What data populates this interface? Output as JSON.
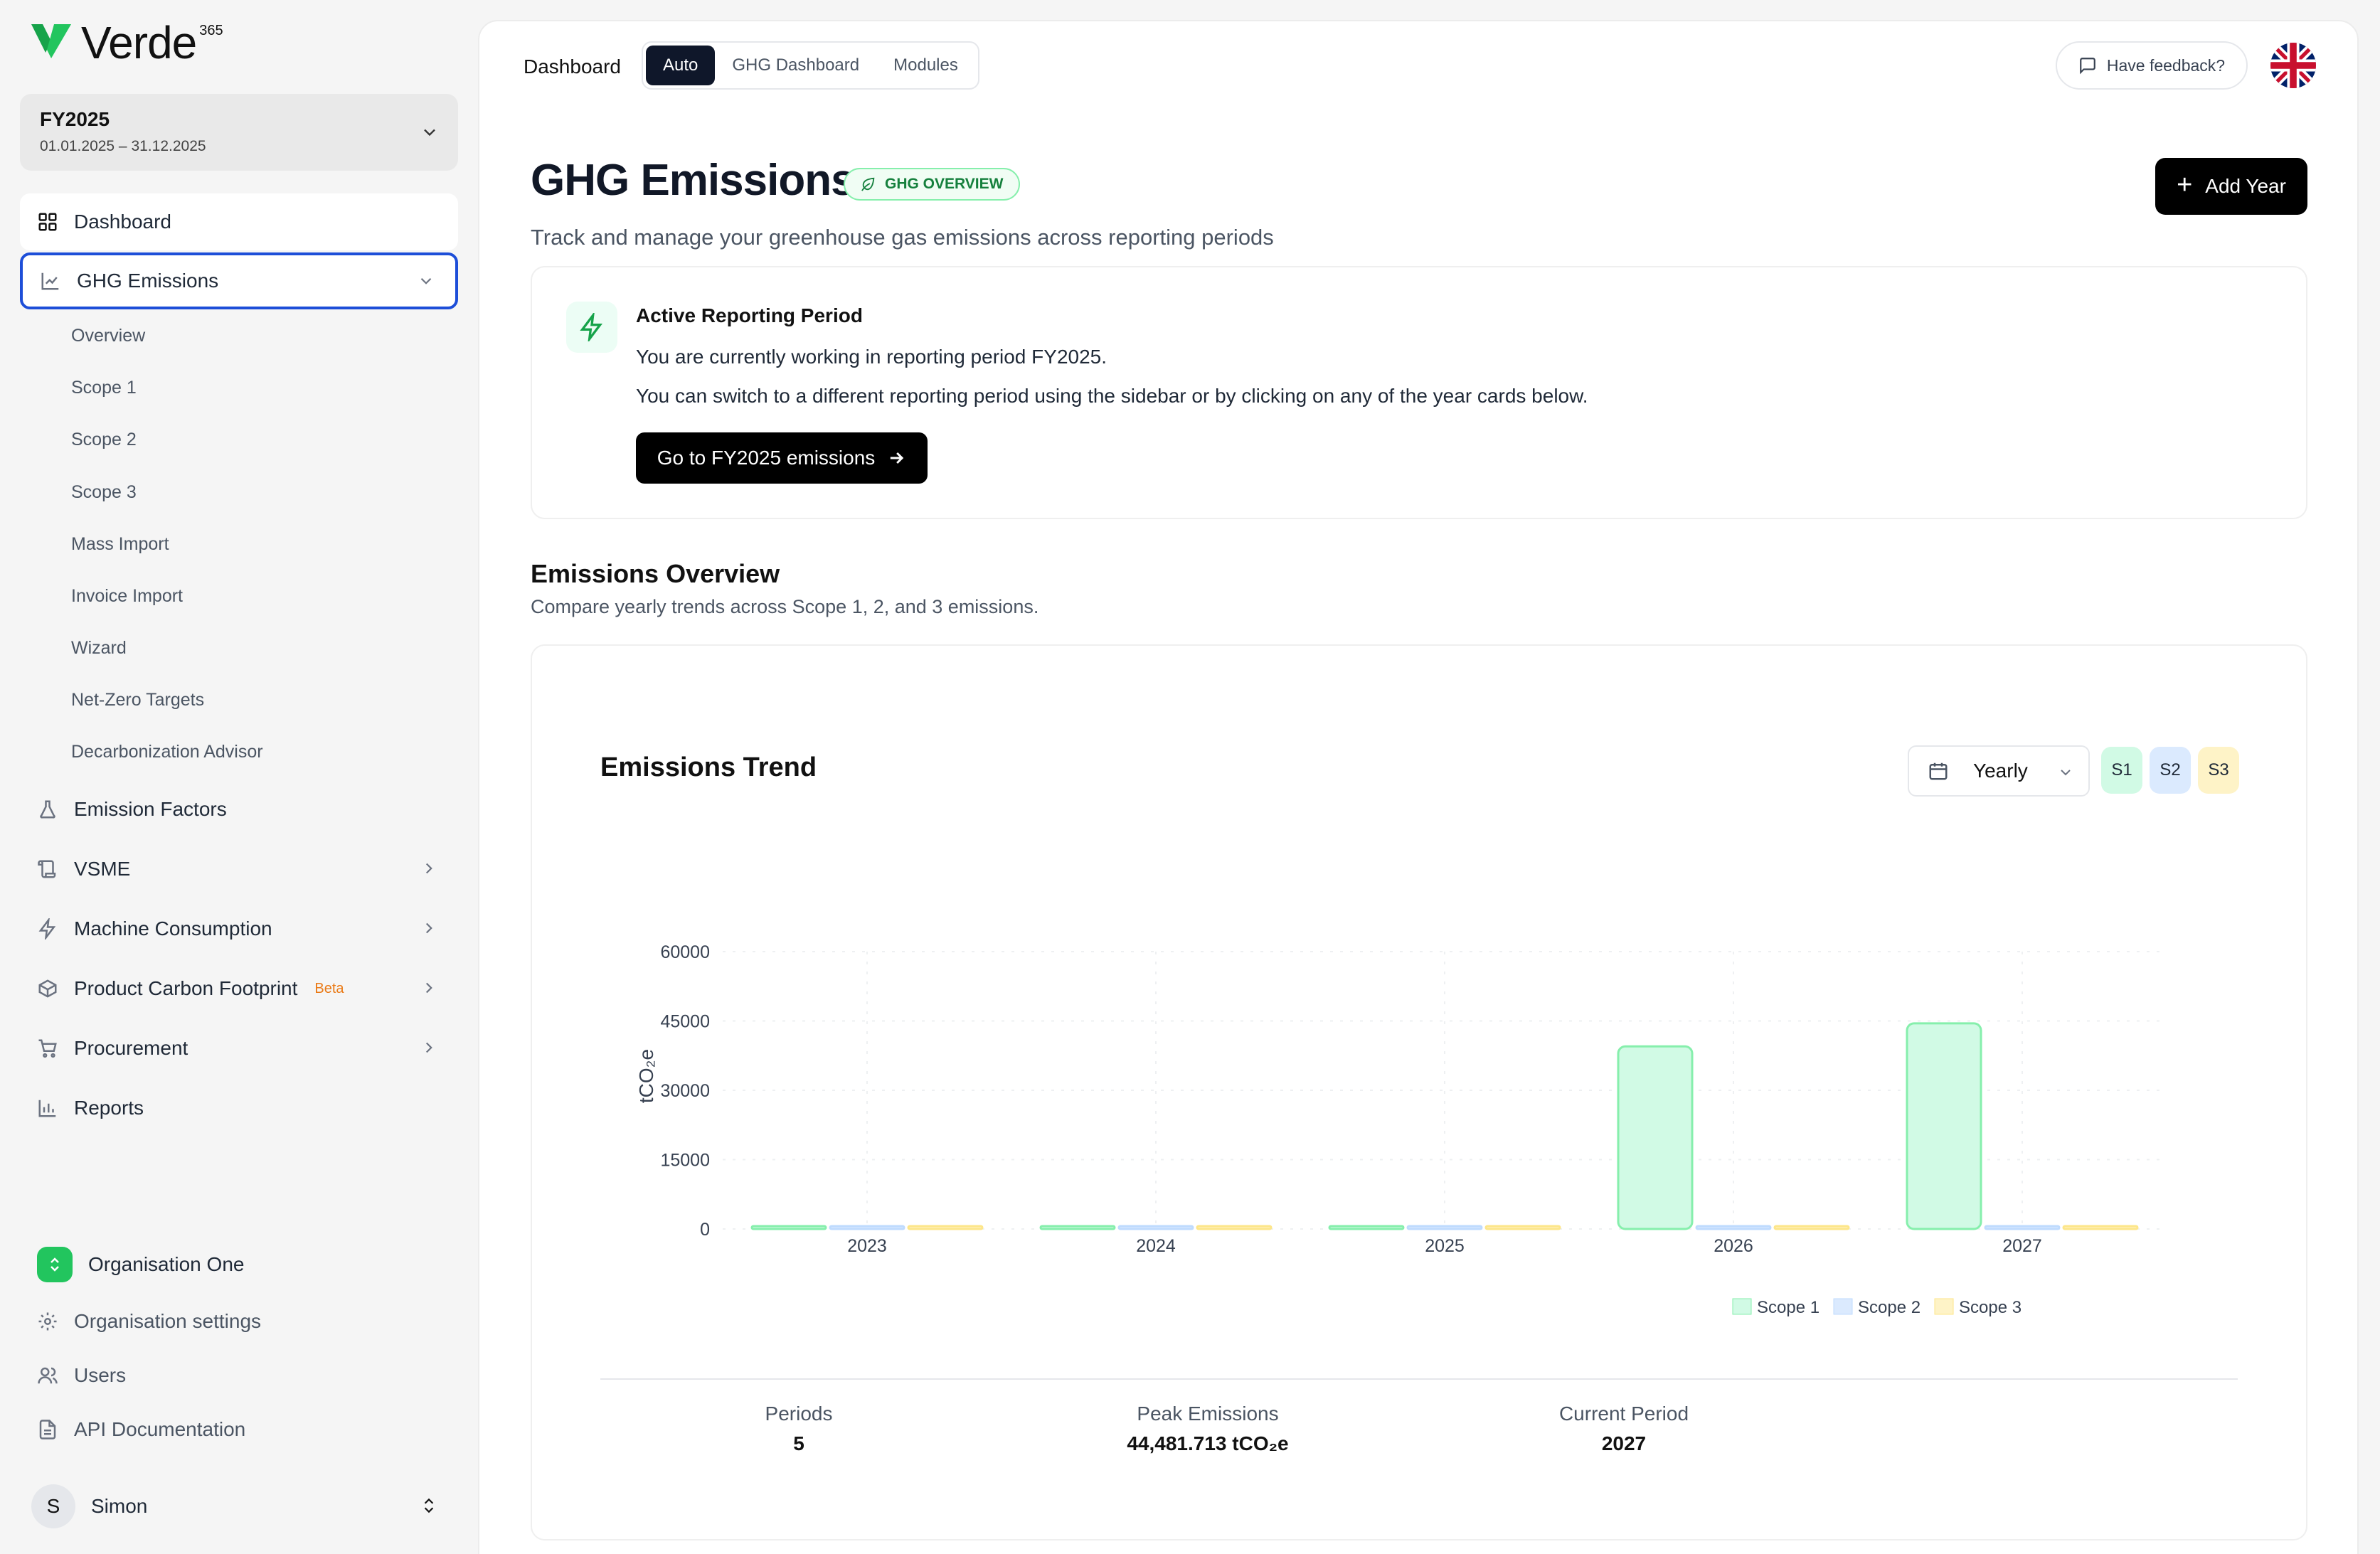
{
  "app": {
    "name": "Verde",
    "superscript": "365"
  },
  "fiscal_year": {
    "label": "FY2025",
    "range": "01.01.2025 – 31.12.2025"
  },
  "sidebar": {
    "dashboard": "Dashboard",
    "ghg": "GHG Emissions",
    "ghg_sub": [
      "Overview",
      "Scope 1",
      "Scope 2",
      "Scope 3",
      "Mass Import",
      "Invoice Import",
      "Wizard",
      "Net-Zero Targets",
      "Decarbonization Advisor"
    ],
    "emission_factors": "Emission Factors",
    "vsme": "VSME",
    "machine": "Machine Consumption",
    "pcf": "Product Carbon Footprint",
    "pcf_badge": "Beta",
    "procurement": "Procurement",
    "reports": "Reports",
    "org_name": "Organisation One",
    "org_settings": "Organisation settings",
    "users": "Users",
    "api_docs": "API Documentation",
    "user_initial": "S",
    "user_name": "Simon"
  },
  "topbar": {
    "breadcrumb": "Dashboard",
    "tabs": [
      "Auto",
      "GHG Dashboard",
      "Modules"
    ],
    "active_tab": "Auto",
    "feedback": "Have feedback?"
  },
  "page": {
    "title": "GHG Emissions",
    "badge": "GHG OVERVIEW",
    "subtitle": "Track and manage your greenhouse gas emissions across reporting periods",
    "add_year": "Add Year"
  },
  "period_card": {
    "title": "Active Reporting Period",
    "line1": "You are currently working in reporting period FY2025.",
    "line2": "You can switch to a different reporting period using the sidebar or by clicking on any of the year cards below.",
    "button": "Go to FY2025 emissions"
  },
  "overview": {
    "title": "Emissions Overview",
    "subtitle": "Compare yearly trends across Scope 1, 2, and 3 emissions.",
    "chart_title": "Emissions Trend",
    "interval": "Yearly",
    "scope_buttons": [
      "S1",
      "S2",
      "S3"
    ]
  },
  "colors": {
    "scope1": "#d1fae5",
    "scope1_stroke": "#86efac",
    "scope2": "#dbeafe",
    "scope2_stroke": "#bfdbfe",
    "scope3": "#fef3c7",
    "scope3_stroke": "#fde68a",
    "accent": "#22c55e"
  },
  "chart_data": {
    "type": "bar",
    "categories": [
      "2023",
      "2024",
      "2025",
      "2026",
      "2027"
    ],
    "series": [
      {
        "name": "Scope 1",
        "values": [
          0,
          0,
          0,
          39500,
          44481.713
        ]
      },
      {
        "name": "Scope 2",
        "values": [
          0,
          0,
          0,
          0,
          0
        ]
      },
      {
        "name": "Scope 3",
        "values": [
          200,
          200,
          200,
          150,
          150
        ]
      }
    ],
    "ylabel": "tCO₂e",
    "ylim": [
      0,
      60000
    ],
    "yticks": [
      "0",
      "15000",
      "30000",
      "45000",
      "60000"
    ],
    "grid": true,
    "legend": "bottom"
  },
  "summary": {
    "periods_label": "Periods",
    "periods_value": "5",
    "peak_label": "Peak Emissions",
    "peak_value": "44,481.713 tCO₂e",
    "current_label": "Current Period",
    "current_value": "2027"
  }
}
